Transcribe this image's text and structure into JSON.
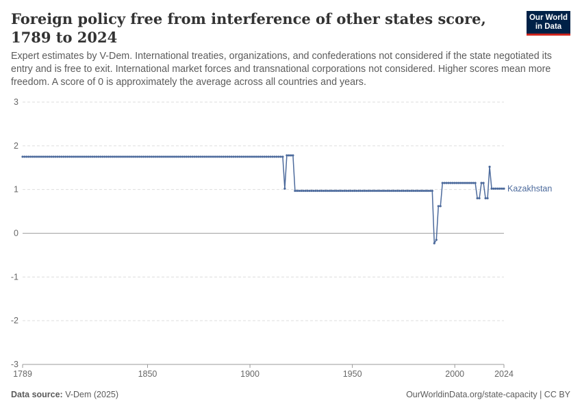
{
  "header": {
    "title": "Foreign policy free from interference of other states score, 1789 to 2024",
    "subtitle": "Expert estimates by V-Dem. International treaties, organizations, and confederations not considered if the state negotiated its entry and is free to exit. International market forces and transnational corporations not considered. Higher scores mean more freedom. A score of 0 is approximately the average across all countries and years."
  },
  "logo": {
    "line1": "Our World",
    "line2": "in Data"
  },
  "footer": {
    "source_label": "Data source:",
    "source_value": "V-Dem (2025)",
    "link": "OurWorldinData.org/state-capacity | CC BY"
  },
  "colors": {
    "series": "#4c6a9c",
    "grid": "#dddddd",
    "zero": "#a1a1a1",
    "axis_text": "#666666"
  },
  "chart_data": {
    "type": "line",
    "title": "Foreign policy free from interference of other states score, 1789 to 2024",
    "xlabel": "",
    "ylabel": "",
    "xlim": [
      1789,
      2024
    ],
    "ylim": [
      -3,
      3
    ],
    "x_ticks": [
      1789,
      1850,
      1900,
      1950,
      2000,
      2024
    ],
    "y_ticks": [
      -3,
      -2,
      -1,
      0,
      1,
      2,
      3
    ],
    "grid": true,
    "legend": "right-end label",
    "series": [
      {
        "name": "Kazakhstan",
        "segments": [
          {
            "from": 1789,
            "to": 1916,
            "value": 1.75
          },
          {
            "from": 1917,
            "to": 1917,
            "value": 1.02
          },
          {
            "from": 1918,
            "to": 1921,
            "value": 1.78
          },
          {
            "from": 1922,
            "to": 1989,
            "value": 0.97
          },
          {
            "from": 1990,
            "to": 1990,
            "value": -0.23
          },
          {
            "from": 1991,
            "to": 1991,
            "value": -0.15
          },
          {
            "from": 1992,
            "to": 1993,
            "value": 0.62
          },
          {
            "from": 1994,
            "to": 2010,
            "value": 1.15
          },
          {
            "from": 2011,
            "to": 2012,
            "value": 0.8
          },
          {
            "from": 2013,
            "to": 2014,
            "value": 1.15
          },
          {
            "from": 2015,
            "to": 2016,
            "value": 0.8
          },
          {
            "from": 2017,
            "to": 2017,
            "value": 1.52
          },
          {
            "from": 2018,
            "to": 2024,
            "value": 1.02
          }
        ]
      }
    ]
  }
}
